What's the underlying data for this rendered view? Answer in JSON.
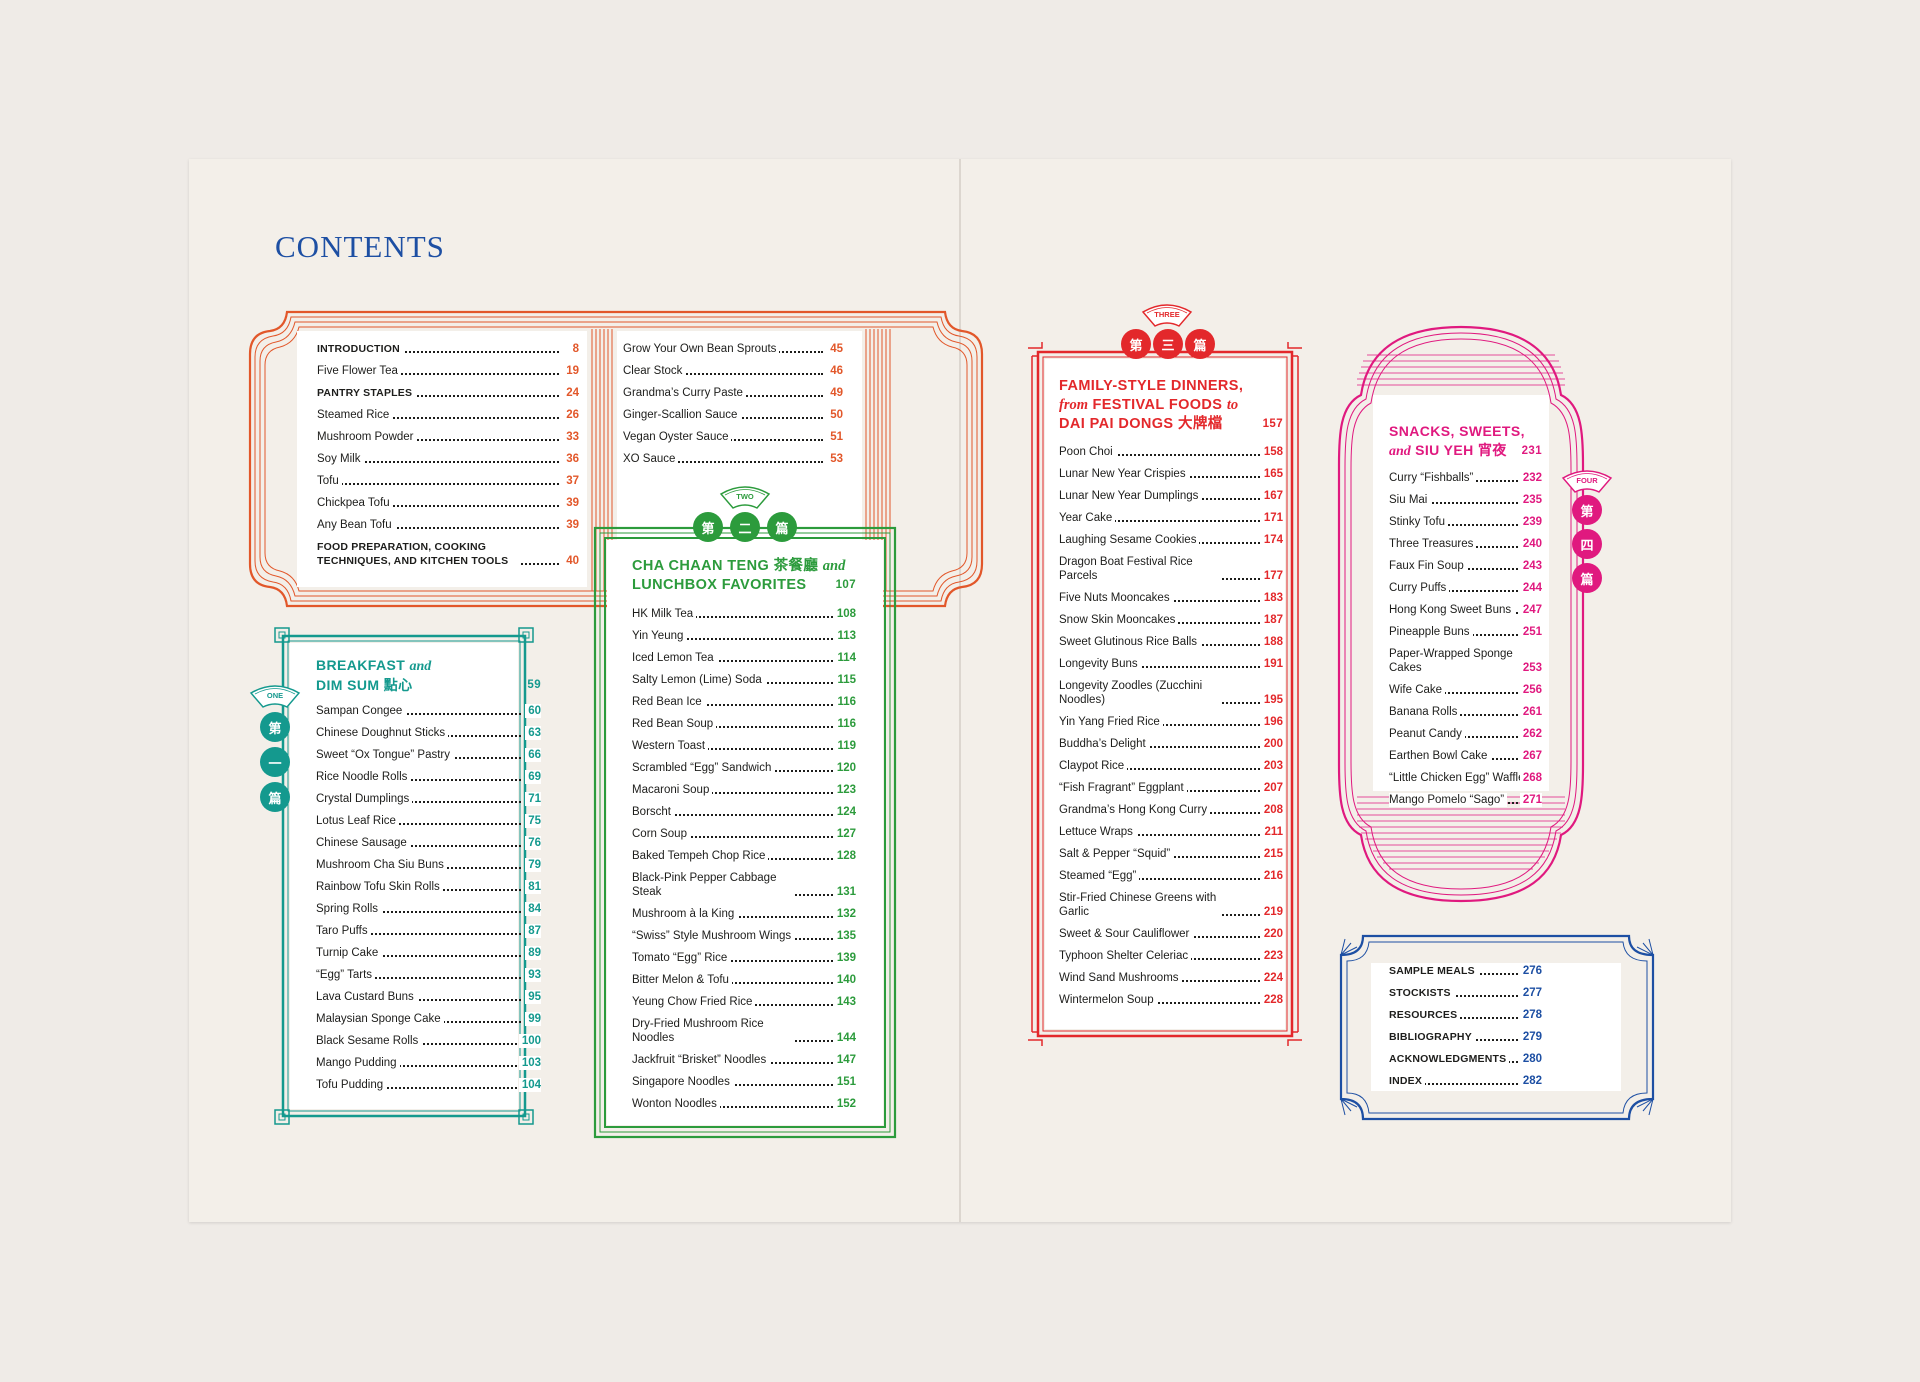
{
  "title": "CONTENTS",
  "colors": {
    "orange": "#e2572a",
    "teal": "#14998e",
    "green": "#2c9b3c",
    "red": "#e3282b",
    "magenta": "#e0197f",
    "blue": "#1d4fa3"
  },
  "intro": {
    "left": [
      {
        "title": "INTRODUCTION",
        "page": "8",
        "caps": true
      },
      {
        "title": "Five Flower Tea",
        "page": "19"
      },
      {
        "title": "PANTRY STAPLES",
        "page": "24",
        "caps": true
      },
      {
        "title": "Steamed Rice",
        "page": "26"
      },
      {
        "title": "Mushroom Powder",
        "page": "33"
      },
      {
        "title": "Soy Milk",
        "page": "36"
      },
      {
        "title": "Tofu",
        "page": "37"
      },
      {
        "title": "Chickpea Tofu",
        "page": "39"
      },
      {
        "title": "Any Bean Tofu",
        "page": "39"
      },
      {
        "title": "FOOD PREPARATION, COOKING TECHNIQUES, AND KITCHEN TOOLS",
        "page": "40",
        "caps": true
      }
    ],
    "right": [
      {
        "title": "Grow Your Own Bean Sprouts",
        "page": "45"
      },
      {
        "title": "Clear Stock",
        "page": "46"
      },
      {
        "title": "Grandma’s Curry Paste",
        "page": "49"
      },
      {
        "title": "Ginger-Scallion Sauce",
        "page": "50"
      },
      {
        "title": "Vegan Oyster Sauce",
        "page": "51"
      },
      {
        "title": "XO Sauce",
        "page": "53"
      }
    ]
  },
  "one": {
    "tag": "ONE",
    "seals": [
      "第",
      "一",
      "篇"
    ],
    "heading1": "BREAKFAST",
    "amp": "and",
    "heading2": "DIM SUM",
    "cjk": "點心",
    "page": "59",
    "items": [
      {
        "title": "Sampan Congee",
        "page": "60"
      },
      {
        "title": "Chinese Doughnut Sticks",
        "page": "63"
      },
      {
        "title": "Sweet “Ox Tongue” Pastry",
        "page": "66"
      },
      {
        "title": "Rice Noodle Rolls",
        "page": "69"
      },
      {
        "title": "Crystal Dumplings",
        "page": "71"
      },
      {
        "title": "Lotus Leaf Rice",
        "page": "75"
      },
      {
        "title": "Chinese Sausage",
        "page": "76"
      },
      {
        "title": "Mushroom Cha Siu Buns",
        "page": "79"
      },
      {
        "title": "Rainbow Tofu Skin Rolls",
        "page": "81"
      },
      {
        "title": "Spring Rolls",
        "page": "84"
      },
      {
        "title": "Taro Puffs",
        "page": "87"
      },
      {
        "title": "Turnip Cake",
        "page": "89"
      },
      {
        "title": "“Egg” Tarts",
        "page": "93"
      },
      {
        "title": "Lava Custard Buns",
        "page": "95"
      },
      {
        "title": "Malaysian Sponge Cake",
        "page": "99"
      },
      {
        "title": "Black Sesame Rolls",
        "page": "100"
      },
      {
        "title": "Mango Pudding",
        "page": "103"
      },
      {
        "title": "Tofu Pudding",
        "page": "104"
      }
    ]
  },
  "two": {
    "tag": "TWO",
    "seals": [
      "第",
      "二",
      "篇"
    ],
    "heading1": "CHA CHAAN TENG",
    "cjk": "茶餐廳",
    "amp": "and",
    "heading2": "LUNCHBOX FAVORITES",
    "page": "107",
    "items": [
      {
        "title": "HK Milk Tea",
        "page": "108"
      },
      {
        "title": "Yin Yeung",
        "page": "113"
      },
      {
        "title": "Iced Lemon Tea",
        "page": "114"
      },
      {
        "title": "Salty Lemon (Lime) Soda",
        "page": "115"
      },
      {
        "title": "Red Bean Ice",
        "page": "116"
      },
      {
        "title": "Red Bean Soup",
        "page": "116"
      },
      {
        "title": "Western Toast",
        "page": "119"
      },
      {
        "title": "Scrambled “Egg” Sandwich",
        "page": "120"
      },
      {
        "title": "Macaroni Soup",
        "page": "123"
      },
      {
        "title": "Borscht",
        "page": "124"
      },
      {
        "title": "Corn Soup",
        "page": "127"
      },
      {
        "title": "Baked Tempeh Chop Rice",
        "page": "128"
      },
      {
        "title": "Black-Pink Pepper Cabbage Steak",
        "page": "131"
      },
      {
        "title": "Mushroom à la King",
        "page": "132"
      },
      {
        "title": "“Swiss” Style Mushroom Wings",
        "page": "135"
      },
      {
        "title": "Tomato “Egg” Rice",
        "page": "139"
      },
      {
        "title": "Bitter Melon & Tofu",
        "page": "140"
      },
      {
        "title": "Yeung Chow Fried Rice",
        "page": "143"
      },
      {
        "title": "Dry-Fried Mushroom Rice Noodles",
        "page": "144"
      },
      {
        "title": "Jackfruit “Brisket” Noodles",
        "page": "147"
      },
      {
        "title": "Singapore Noodles",
        "page": "151"
      },
      {
        "title": "Wonton Noodles",
        "page": "152"
      }
    ]
  },
  "three": {
    "tag": "THREE",
    "seals": [
      "第",
      "三",
      "篇"
    ],
    "heading1": "FAMILY-STYLE DINNERS,",
    "from": "from",
    "heading2": "FESTIVAL FOODS",
    "to": "to",
    "heading3": "DAI PAI DONGS",
    "cjk": "大牌檔",
    "page": "157",
    "items": [
      {
        "title": "Poon Choi",
        "page": "158"
      },
      {
        "title": "Lunar New Year Crispies",
        "page": "165"
      },
      {
        "title": "Lunar New Year Dumplings",
        "page": "167"
      },
      {
        "title": "Year Cake",
        "page": "171"
      },
      {
        "title": "Laughing Sesame Cookies",
        "page": "174"
      },
      {
        "title": "Dragon Boat Festival Rice Parcels",
        "page": "177"
      },
      {
        "title": "Five Nuts Mooncakes",
        "page": "183"
      },
      {
        "title": "Snow Skin Mooncakes",
        "page": "187"
      },
      {
        "title": "Sweet Glutinous Rice Balls",
        "page": "188"
      },
      {
        "title": "Longevity Buns",
        "page": "191"
      },
      {
        "title": "Longevity Zoodles (Zucchini Noodles)",
        "page": "195"
      },
      {
        "title": "Yin Yang Fried Rice",
        "page": "196"
      },
      {
        "title": "Buddha’s Delight",
        "page": "200"
      },
      {
        "title": "Claypot Rice",
        "page": "203"
      },
      {
        "title": "“Fish Fragrant” Eggplant",
        "page": "207"
      },
      {
        "title": "Grandma’s Hong Kong Curry",
        "page": "208"
      },
      {
        "title": "Lettuce Wraps",
        "page": "211"
      },
      {
        "title": "Salt & Pepper “Squid”",
        "page": "215"
      },
      {
        "title": "Steamed “Egg”",
        "page": "216"
      },
      {
        "title": "Stir-Fried Chinese Greens with Garlic",
        "page": "219"
      },
      {
        "title": "Sweet & Sour Cauliflower",
        "page": "220"
      },
      {
        "title": "Typhoon Shelter Celeriac",
        "page": "223"
      },
      {
        "title": "Wind Sand Mushrooms",
        "page": "224"
      },
      {
        "title": "Wintermelon Soup",
        "page": "228"
      }
    ]
  },
  "four": {
    "tag": "FOUR",
    "seals": [
      "第",
      "四",
      "篇"
    ],
    "heading1": "SNACKS, SWEETS,",
    "amp": "and",
    "heading2": "SIU YEH",
    "cjk": "宵夜",
    "page": "231",
    "items": [
      {
        "title": "Curry “Fishballs”",
        "page": "232"
      },
      {
        "title": "Siu Mai",
        "page": "235"
      },
      {
        "title": "Stinky Tofu",
        "page": "239"
      },
      {
        "title": "Three Treasures",
        "page": "240"
      },
      {
        "title": "Faux Fin Soup",
        "page": "243"
      },
      {
        "title": "Curry Puffs",
        "page": "244"
      },
      {
        "title": "Hong Kong Sweet Buns",
        "page": "247"
      },
      {
        "title": "Pineapple Buns",
        "page": "251"
      },
      {
        "title": "Paper-Wrapped Sponge Cakes",
        "page": "253"
      },
      {
        "title": "Wife Cake",
        "page": "256"
      },
      {
        "title": "Banana Rolls",
        "page": "261"
      },
      {
        "title": "Peanut Candy",
        "page": "262"
      },
      {
        "title": "Earthen Bowl Cake",
        "page": "267"
      },
      {
        "title": "“Little Chicken Egg” Waffles",
        "page": "268"
      },
      {
        "title": "Mango Pomelo “Sago”",
        "page": "271"
      }
    ]
  },
  "back": {
    "items": [
      {
        "title": "SAMPLE MEALS",
        "page": "276",
        "caps": true
      },
      {
        "title": "STOCKISTS",
        "page": "277",
        "caps": true
      },
      {
        "title": "RESOURCES",
        "page": "278",
        "caps": true
      },
      {
        "title": "BIBLIOGRAPHY",
        "page": "279",
        "caps": true
      },
      {
        "title": "ACKNOWLEDGMENTS",
        "page": "280",
        "caps": true
      },
      {
        "title": "INDEX",
        "page": "282",
        "caps": true
      }
    ]
  }
}
